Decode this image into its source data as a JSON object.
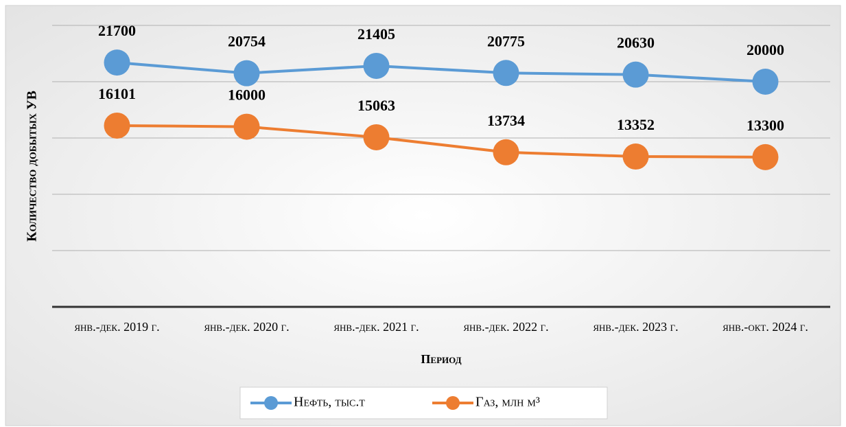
{
  "chart_data": {
    "type": "line",
    "xlabel": "Период",
    "ylabel": "Количество добытых УВ",
    "categories": [
      "янв.-дек. 2019 г.",
      "янв.-дек. 2020 г.",
      "янв.-дек. 2021 г.",
      "янв.-дек. 2022 г.",
      "янв.-дек. 2023 г.",
      "янв.-окт. 2024 г."
    ],
    "series": [
      {
        "name": "Нефть, тыс.т",
        "color": "#5b9bd5",
        "values": [
          21700,
          20754,
          21405,
          20775,
          20630,
          20000
        ]
      },
      {
        "name": "Газ, млн м³",
        "color": "#ed7d31",
        "values": [
          16101,
          16000,
          15063,
          13734,
          13352,
          13300
        ]
      }
    ],
    "ylim": [
      0,
      25000
    ],
    "yticks": [
      0,
      5000,
      10000,
      15000,
      20000,
      25000
    ],
    "grid": true,
    "legend": "bottom"
  }
}
